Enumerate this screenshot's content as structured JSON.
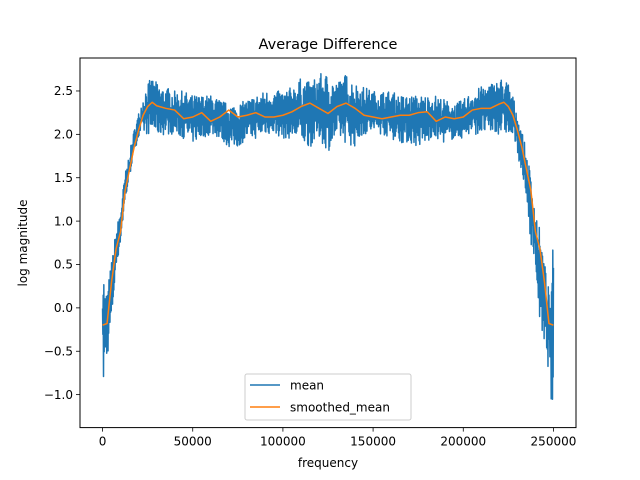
{
  "chart_data": {
    "type": "line",
    "title": "Average Difference",
    "xlabel": "frequency",
    "ylabel": "log magnitude",
    "xlim": [
      -12500,
      262500
    ],
    "ylim": [
      -1.38,
      2.88
    ],
    "xticks": [
      0,
      50000,
      100000,
      150000,
      200000,
      250000
    ],
    "xtick_labels": [
      "0",
      "50000",
      "100000",
      "150000",
      "200000",
      "250000"
    ],
    "yticks": [
      -1.0,
      -0.5,
      0.0,
      0.5,
      1.0,
      1.5,
      2.0,
      2.5
    ],
    "ytick_labels": [
      "−1.0",
      "−0.5",
      "0.0",
      "0.5",
      "1.0",
      "1.5",
      "2.0",
      "2.5"
    ],
    "grid": false,
    "legend_position": "lower center",
    "series": [
      {
        "name": "mean",
        "color": "#1f77b4",
        "style": "noisy band",
        "x": [
          0,
          1000,
          2500,
          5000,
          7500,
          10000,
          12500,
          15000,
          17500,
          20000,
          22500,
          25000,
          27500,
          30000,
          32500,
          35000,
          40000,
          45000,
          50000,
          55000,
          60000,
          65000,
          70000,
          75000,
          80000,
          85000,
          90000,
          95000,
          100000,
          105000,
          110000,
          115000,
          120000,
          125000,
          130000,
          135000,
          140000,
          145000,
          150000,
          155000,
          160000,
          165000,
          170000,
          175000,
          180000,
          185000,
          190000,
          195000,
          200000,
          205000,
          210000,
          215000,
          217500,
          220000,
          222500,
          225000,
          227500,
          230000,
          232500,
          235000,
          237500,
          240000,
          242500,
          245000,
          247500,
          249000,
          250000
        ],
        "upper": [
          0.97,
          0.2,
          0.2,
          0.55,
          0.9,
          1.15,
          1.55,
          1.8,
          2.05,
          2.25,
          2.45,
          2.6,
          2.65,
          2.6,
          2.55,
          2.55,
          2.5,
          2.5,
          2.45,
          2.45,
          2.45,
          2.4,
          2.35,
          2.35,
          2.4,
          2.45,
          2.5,
          2.5,
          2.5,
          2.55,
          2.65,
          2.6,
          2.7,
          2.7,
          2.6,
          2.7,
          2.6,
          2.55,
          2.5,
          2.5,
          2.5,
          2.45,
          2.45,
          2.45,
          2.45,
          2.45,
          2.4,
          2.35,
          2.4,
          2.5,
          2.55,
          2.6,
          2.6,
          2.65,
          2.65,
          2.6,
          2.45,
          2.25,
          2.05,
          1.8,
          1.55,
          1.15,
          0.9,
          0.55,
          0.2,
          0.2,
          0.97
        ],
        "lower": [
          -1.2,
          -0.7,
          -0.6,
          -0.2,
          0.45,
          0.75,
          1.2,
          1.5,
          1.8,
          1.95,
          2.0,
          2.0,
          2.0,
          2.0,
          1.98,
          2.0,
          2.0,
          1.95,
          1.9,
          1.95,
          2.0,
          1.95,
          1.85,
          1.85,
          1.95,
          1.95,
          2.0,
          2.0,
          1.95,
          1.95,
          1.9,
          1.85,
          1.95,
          1.8,
          1.95,
          1.9,
          1.85,
          2.0,
          2.0,
          2.0,
          1.95,
          1.9,
          1.9,
          1.85,
          1.9,
          1.95,
          1.9,
          1.95,
          1.95,
          2.0,
          2.0,
          2.0,
          2.0,
          2.0,
          2.0,
          2.0,
          1.95,
          1.8,
          1.5,
          1.2,
          0.75,
          0.45,
          -0.2,
          -0.6,
          -0.7,
          -1.2,
          -1.2
        ]
      },
      {
        "name": "smoothed_mean",
        "color": "#ff7f0e",
        "x": [
          0,
          2500,
          5000,
          7500,
          10000,
          12500,
          15000,
          17500,
          20000,
          22500,
          25000,
          27500,
          30000,
          35000,
          40000,
          45000,
          50000,
          55000,
          60000,
          65000,
          70000,
          75000,
          80000,
          85000,
          90000,
          95000,
          100000,
          105000,
          110000,
          115000,
          120000,
          125000,
          130000,
          135000,
          140000,
          145000,
          150000,
          155000,
          160000,
          165000,
          170000,
          175000,
          180000,
          185000,
          190000,
          195000,
          200000,
          205000,
          210000,
          215000,
          220000,
          222500,
          225000,
          227500,
          230000,
          232500,
          235000,
          237500,
          240000,
          242500,
          245000,
          247500,
          250000
        ],
        "y": [
          -0.2,
          -0.18,
          0.3,
          0.68,
          0.88,
          1.35,
          1.6,
          1.85,
          2.05,
          2.22,
          2.32,
          2.37,
          2.33,
          2.3,
          2.28,
          2.18,
          2.2,
          2.25,
          2.15,
          2.2,
          2.28,
          2.2,
          2.22,
          2.25,
          2.2,
          2.2,
          2.22,
          2.26,
          2.32,
          2.36,
          2.3,
          2.24,
          2.32,
          2.36,
          2.3,
          2.22,
          2.2,
          2.18,
          2.2,
          2.22,
          2.22,
          2.25,
          2.26,
          2.15,
          2.2,
          2.18,
          2.2,
          2.28,
          2.3,
          2.3,
          2.35,
          2.37,
          2.32,
          2.22,
          2.05,
          1.85,
          1.6,
          1.35,
          0.88,
          0.68,
          0.3,
          -0.18,
          -0.2
        ]
      }
    ]
  }
}
